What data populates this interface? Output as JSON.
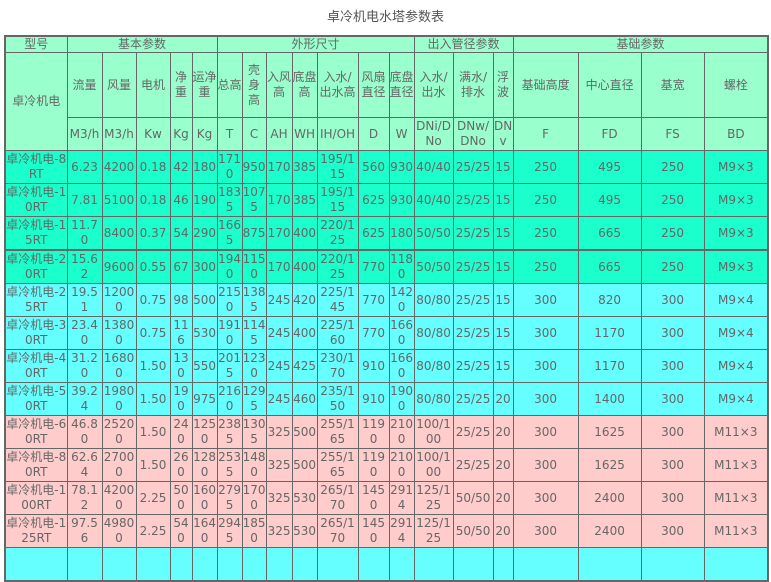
{
  "title": "卓冷机电水塔参数表",
  "colors": {
    "header": "#99ffcc",
    "teal": "#1affcc",
    "cyan": "#66ffff",
    "pink": "#ffcccc",
    "border": "#666666"
  },
  "groups": [
    "型号",
    "基本参数",
    "外形尺寸",
    "出入管径参数",
    "基础参数"
  ],
  "model_label": "卓冷机电",
  "columns": [
    "流量",
    "风量",
    "电机",
    "净重",
    "运净重",
    "总高",
    "壳身高",
    "入风高",
    "底盘高",
    "入水/出水高",
    "风扇直径",
    "底盘直径",
    "入水/出水",
    "满水/排水",
    "浮波",
    "基础高度",
    "中心直径",
    "基宽",
    "螺栓"
  ],
  "units": [
    "M3/h",
    "M3/h",
    "Kw",
    "Kg",
    "Kg",
    "T",
    "C",
    "AH",
    "WH",
    "IH/OH",
    "D",
    "W",
    "DNi/DNo",
    "DNw/DNo",
    "DNv",
    "F",
    "FD",
    "FS",
    "BD"
  ],
  "rows": [
    {
      "tone": "teal",
      "cells": [
        "卓冷机电-8RT",
        "6.23",
        "4200",
        "0.18",
        "42",
        "180",
        "1710",
        "950",
        "170",
        "385",
        "195/115",
        "560",
        "930",
        "40/40",
        "25/25",
        "15",
        "250",
        "495",
        "250",
        "M9×3"
      ]
    },
    {
      "tone": "teal",
      "cells": [
        "卓冷机电-10RT",
        "7.81",
        "5100",
        "0.18",
        "46",
        "190",
        "1835",
        "1075",
        "170",
        "385",
        "195/115",
        "625",
        "930",
        "40/40",
        "25/25",
        "15",
        "250",
        "495",
        "250",
        "M9×3"
      ]
    },
    {
      "tone": "teal",
      "cells": [
        "卓冷机电-15RT",
        "11.70",
        "8400",
        "0.37",
        "54",
        "290",
        "1665",
        "875",
        "170",
        "400",
        "220/125",
        "625",
        "180",
        "50/50",
        "25/25",
        "15",
        "250",
        "665",
        "250",
        "M9×3"
      ]
    },
    {
      "tone": "teal",
      "cells": [
        "卓冷机电-20RT",
        "15.62",
        "9600",
        "0.55",
        "67",
        "300",
        "1940",
        "1150",
        "170",
        "400",
        "220/125",
        "770",
        "1180",
        "50/50",
        "25/25",
        "15",
        "250",
        "665",
        "250",
        "M9×3"
      ]
    },
    {
      "tone": "cyan",
      "cells": [
        "卓冷机电-25RT",
        "19.51",
        "12000",
        "0.75",
        "98",
        "500",
        "2150",
        "1385",
        "245",
        "420",
        "225/145",
        "770",
        "1420",
        "80/80",
        "25/25",
        "15",
        "300",
        "820",
        "300",
        "M9×4"
      ]
    },
    {
      "tone": "cyan",
      "cells": [
        "卓冷机电-30RT",
        "23.40",
        "13800",
        "0.75",
        "116",
        "530",
        "1910",
        "1145",
        "245",
        "400",
        "225/160",
        "770",
        "1660",
        "80/80",
        "25/25",
        "15",
        "300",
        "1170",
        "300",
        "M9×4"
      ]
    },
    {
      "tone": "cyan",
      "cells": [
        "卓冷机电-40RT",
        "31.20",
        "16800",
        "1.50",
        "130",
        "550",
        "2015",
        "1230",
        "245",
        "425",
        "230/170",
        "910",
        "1660",
        "80/80",
        "25/25",
        "15",
        "300",
        "1170",
        "300",
        "M9×4"
      ]
    },
    {
      "tone": "cyan",
      "cells": [
        "卓冷机电-50RT",
        "39.24",
        "19800",
        "1.50",
        "190",
        "975",
        "2160",
        "1295",
        "245",
        "460",
        "235/150",
        "910",
        "1900",
        "80/80",
        "25/25",
        "20",
        "300",
        "1400",
        "300",
        "M9×4"
      ]
    },
    {
      "tone": "pink",
      "cells": [
        "卓冷机电-60RT",
        "46.80",
        "25200",
        "1.50",
        "240",
        "1250",
        "2385",
        "1305",
        "325",
        "500",
        "255/165",
        "1190",
        "2100",
        "100/100",
        "25/25",
        "20",
        "300",
        "1625",
        "300",
        "M11×3"
      ]
    },
    {
      "tone": "pink",
      "cells": [
        "卓冷机电-80RT",
        "62.64",
        "27000",
        "1.50",
        "260",
        "1280",
        "2535",
        "1480",
        "325",
        "500",
        "255/165",
        "1190",
        "2100",
        "100/100",
        "25/25",
        "20",
        "300",
        "1625",
        "300",
        "M11×3"
      ]
    },
    {
      "tone": "pink",
      "cells": [
        "卓冷机电-100RT",
        "78.12",
        "42000",
        "2.25",
        "500",
        "1600",
        "2795",
        "1700",
        "325",
        "530",
        "265/170",
        "1450",
        "2914",
        "125/125",
        "50/50",
        "20",
        "300",
        "2400",
        "300",
        "M11×3"
      ]
    },
    {
      "tone": "pink",
      "cells": [
        "卓冷机电-125RT",
        "97.56",
        "49800",
        "2.25",
        "540",
        "1640",
        "2945",
        "1850",
        "325",
        "530",
        "265/170",
        "1450",
        "2914",
        "125/125",
        "50/50",
        "20",
        "300",
        "2400",
        "300",
        "M11×3"
      ]
    }
  ]
}
